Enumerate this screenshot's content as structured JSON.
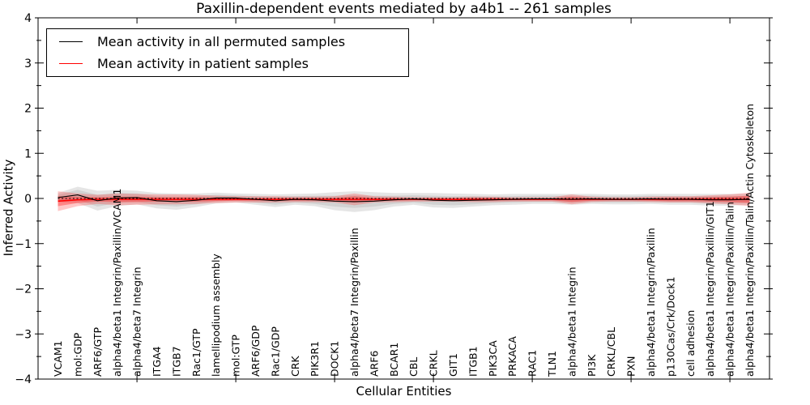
{
  "figure": {
    "title": "Paxillin-dependent events mediated by a4b1 -- 261 samples",
    "xlabel": "Cellular Entities",
    "ylabel": "Inferred Activity"
  },
  "legend": {
    "entries": [
      {
        "label": "Mean activity in all permuted samples",
        "color": "#000000"
      },
      {
        "label": "Mean activity in patient samples",
        "color": "#ff0000"
      }
    ]
  },
  "chart_data": {
    "type": "line",
    "title": "Paxillin-dependent events mediated by a4b1 -- 261 samples",
    "xlabel": "Cellular Entities",
    "ylabel": "Inferred Activity",
    "ylim": [
      -4,
      4
    ],
    "ytick_values": [
      4,
      3,
      2,
      1,
      0,
      -1,
      -2,
      -3,
      -4
    ],
    "ytick_labels": [
      "4",
      "3",
      "2",
      "1",
      "0",
      "−1",
      "−2",
      "−3",
      "−4"
    ],
    "y_minor_step": 0.5,
    "x_major_tick_indices": [
      4,
      9,
      14,
      19,
      24,
      29,
      34
    ],
    "grid": false,
    "legend_position": "upper left",
    "categories": [
      "VCAM1",
      "mol:GDP",
      "ARF6/GTP",
      "alpha4/beta1 Integrin/Paxillin/VCAM1",
      "alpha4/beta7 Integrin",
      "ITGA4",
      "ITGB7",
      "Rac1/GTP",
      "lamellipodium assembly",
      "mol:GTP",
      "ARF6/GDP",
      "Rac1/GDP",
      "CRK",
      "PIK3R1",
      "DOCK1",
      "alpha4/beta7 Integrin/Paxillin",
      "ARF6",
      "BCAR1",
      "CBL",
      "CRKL",
      "GIT1",
      "ITGB1",
      "PIK3CA",
      "PRKACA",
      "RAC1",
      "TLN1",
      "alpha4/beta1 Integrin",
      "PI3K",
      "CRKL/CBL",
      "PXN",
      "alpha4/beta1 Integrin/Paxillin",
      "p130Cas/Crk/Dock1",
      "cell adhesion",
      "alpha4/beta1 Integrin/Paxillin/GIT1",
      "alpha4/beta1 Integrin/Paxillin/Talin",
      "alpha4/beta1 Integrin/Paxillin/Talin/Actin Cytoskeleton"
    ],
    "series": [
      {
        "name": "Mean activity in all permuted samples",
        "color": "#000000",
        "width": 1.1,
        "values": [
          0.02,
          0.08,
          -0.05,
          0.01,
          0.02,
          -0.05,
          -0.07,
          -0.04,
          0.01,
          0.01,
          -0.02,
          -0.05,
          -0.02,
          -0.03,
          -0.06,
          -0.07,
          -0.06,
          -0.03,
          -0.01,
          -0.04,
          -0.05,
          -0.04,
          -0.03,
          -0.02,
          -0.01,
          -0.01,
          -0.02,
          -0.01,
          -0.02,
          -0.02,
          -0.01,
          -0.02,
          -0.02,
          -0.03,
          -0.03,
          -0.02
        ]
      },
      {
        "name": "Mean activity in patient samples",
        "color": "#ff0000",
        "width": 1.6,
        "values": [
          -0.06,
          -0.03,
          -0.02,
          -0.02,
          -0.02,
          -0.02,
          -0.02,
          -0.02,
          -0.02,
          -0.02,
          -0.02,
          -0.02,
          -0.02,
          -0.02,
          -0.02,
          -0.02,
          -0.02,
          -0.02,
          -0.02,
          -0.02,
          -0.02,
          -0.02,
          -0.02,
          -0.02,
          -0.02,
          -0.02,
          -0.02,
          -0.02,
          -0.02,
          -0.02,
          -0.02,
          -0.02,
          -0.02,
          -0.02,
          -0.02,
          -0.02
        ]
      }
    ],
    "zero_line": {
      "value": 0,
      "color": "#000000",
      "style": "dotted"
    },
    "bands": [
      {
        "name": "permuted-spread-outer",
        "around": "permuted",
        "color": "rgba(125,125,125,0.20)",
        "half_widths": [
          0.1,
          0.18,
          0.22,
          0.18,
          0.15,
          0.17,
          0.18,
          0.15,
          0.12,
          0.1,
          0.12,
          0.14,
          0.12,
          0.14,
          0.2,
          0.23,
          0.2,
          0.15,
          0.13,
          0.16,
          0.16,
          0.14,
          0.12,
          0.12,
          0.11,
          0.11,
          0.12,
          0.11,
          0.11,
          0.11,
          0.11,
          0.12,
          0.12,
          0.13,
          0.13,
          0.12
        ]
      },
      {
        "name": "permuted-spread-inner",
        "around": "permuted",
        "color": "rgba(125,125,125,0.18)",
        "half_widths": [
          0.06,
          0.11,
          0.13,
          0.11,
          0.09,
          0.1,
          0.11,
          0.09,
          0.07,
          0.06,
          0.07,
          0.09,
          0.07,
          0.09,
          0.12,
          0.14,
          0.12,
          0.09,
          0.08,
          0.1,
          0.1,
          0.09,
          0.07,
          0.07,
          0.07,
          0.07,
          0.07,
          0.07,
          0.07,
          0.07,
          0.07,
          0.07,
          0.07,
          0.08,
          0.08,
          0.07
        ]
      },
      {
        "name": "patient-spread-outer",
        "around": "patient",
        "color": "rgba(255,30,30,0.25)",
        "half_widths": [
          0.22,
          0.14,
          0.1,
          0.13,
          0.12,
          0.11,
          0.11,
          0.1,
          0.08,
          0.07,
          0.07,
          0.07,
          0.06,
          0.06,
          0.07,
          0.13,
          0.07,
          0.06,
          0.05,
          0.05,
          0.05,
          0.06,
          0.06,
          0.05,
          0.05,
          0.05,
          0.11,
          0.06,
          0.05,
          0.05,
          0.06,
          0.07,
          0.07,
          0.09,
          0.11,
          0.15
        ]
      },
      {
        "name": "patient-spread-inner",
        "around": "patient",
        "color": "rgba(255,30,30,0.38)",
        "half_widths": [
          0.11,
          0.07,
          0.05,
          0.06,
          0.06,
          0.05,
          0.05,
          0.05,
          0.04,
          0.03,
          0.03,
          0.03,
          0.03,
          0.03,
          0.03,
          0.07,
          0.03,
          0.03,
          0.02,
          0.02,
          0.02,
          0.03,
          0.03,
          0.02,
          0.02,
          0.02,
          0.06,
          0.03,
          0.02,
          0.02,
          0.03,
          0.04,
          0.04,
          0.05,
          0.06,
          0.08
        ]
      }
    ]
  }
}
